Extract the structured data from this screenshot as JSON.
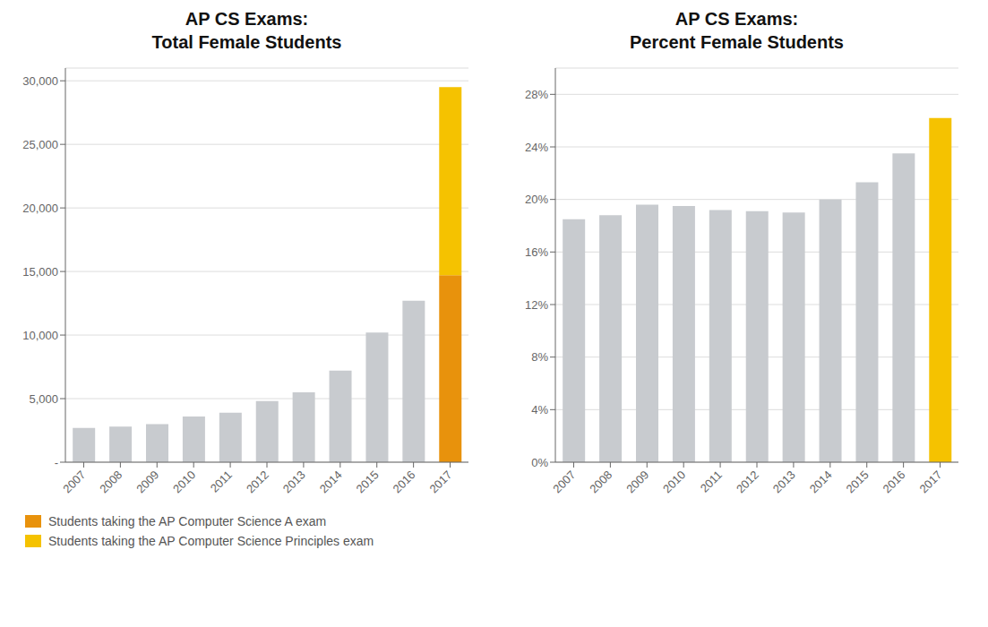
{
  "chart_data": [
    {
      "type": "bar",
      "title": "AP CS Exams:\nTotal Female Students",
      "categories": [
        "2007",
        "2008",
        "2009",
        "2010",
        "2011",
        "2012",
        "2013",
        "2014",
        "2015",
        "2016",
        "2017"
      ],
      "series": [
        {
          "color": "#C8CBCF",
          "values": [
            2700,
            2800,
            3000,
            3600,
            3900,
            4800,
            5500,
            7200,
            10200,
            12700,
            null
          ]
        },
        {
          "name": "Students taking the AP Computer Science A exam",
          "color": "#E8920C",
          "values": [
            null,
            null,
            null,
            null,
            null,
            null,
            null,
            null,
            null,
            null,
            14700
          ]
        },
        {
          "name": "Students taking the AP Computer Science Principles exam",
          "color": "#F5C200",
          "values": [
            null,
            null,
            null,
            null,
            null,
            null,
            null,
            null,
            null,
            null,
            14800
          ]
        }
      ],
      "stacked": true,
      "ylim": [
        0,
        31000
      ],
      "yticks": [
        {
          "value": 0,
          "label": "-"
        },
        {
          "value": 5000,
          "label": "5,000"
        },
        {
          "value": 10000,
          "label": "10,000"
        },
        {
          "value": 15000,
          "label": "15,000"
        },
        {
          "value": 20000,
          "label": "20,000"
        },
        {
          "value": 25000,
          "label": "25,000"
        },
        {
          "value": 30000,
          "label": "30,000"
        }
      ],
      "grid": true,
      "legend": "lower left"
    },
    {
      "type": "bar",
      "title": "AP CS Exams:\nPercent Female Students",
      "categories": [
        "2007",
        "2008",
        "2009",
        "2010",
        "2011",
        "2012",
        "2013",
        "2014",
        "2015",
        "2016",
        "2017"
      ],
      "values": [
        0.185,
        0.188,
        0.196,
        0.195,
        0.192,
        0.191,
        0.19,
        0.2,
        0.213,
        0.235,
        0.262
      ],
      "colors": [
        "#C8CBCF",
        "#C8CBCF",
        "#C8CBCF",
        "#C8CBCF",
        "#C8CBCF",
        "#C8CBCF",
        "#C8CBCF",
        "#C8CBCF",
        "#C8CBCF",
        "#C8CBCF",
        "#F5C200"
      ],
      "ylim": [
        0,
        0.3
      ],
      "yticks": [
        {
          "value": 0,
          "label": "0%"
        },
        {
          "value": 0.04,
          "label": "4%"
        },
        {
          "value": 0.08,
          "label": "8%"
        },
        {
          "value": 0.12,
          "label": "12%"
        },
        {
          "value": 0.16,
          "label": "16%"
        },
        {
          "value": 0.2,
          "label": "20%"
        },
        {
          "value": 0.24,
          "label": "24%"
        },
        {
          "value": 0.28,
          "label": "28%"
        }
      ],
      "grid": true
    }
  ]
}
